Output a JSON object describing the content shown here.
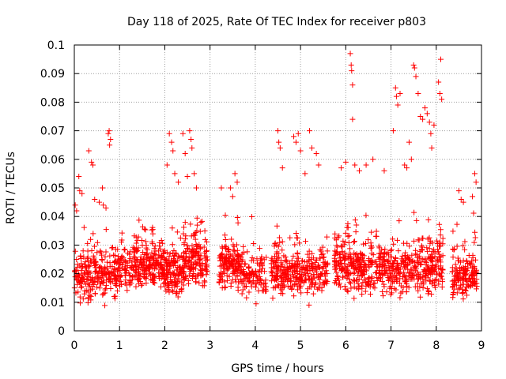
{
  "chart_data": {
    "type": "scatter",
    "title": "Day 118 of 2025, Rate Of TEC Index for receiver p803",
    "xlabel": "GPS time / hours",
    "ylabel": "ROTI / TECUs",
    "xlim": [
      0,
      9
    ],
    "ylim": [
      0,
      0.1
    ],
    "xticks": [
      "0",
      "1",
      "2",
      "3",
      "4",
      "5",
      "6",
      "7",
      "8",
      "9"
    ],
    "yticks": [
      "0",
      "0.01",
      "0.02",
      "0.03",
      "0.04",
      "0.05",
      "0.06",
      "0.07",
      "0.08",
      "0.09",
      "0.1"
    ],
    "grid": true,
    "marker": "plus",
    "series": [
      {
        "color": "#ff0000",
        "clusters": [
          {
            "x": [
              0.0,
              0.35
            ],
            "center": 0.018,
            "spread": 0.012,
            "n": 90
          },
          {
            "x": [
              0.35,
              0.95
            ],
            "center": 0.02,
            "spread": 0.013,
            "n": 150
          },
          {
            "x": [
              0.95,
              1.45
            ],
            "center": 0.022,
            "spread": 0.013,
            "n": 130
          },
          {
            "x": [
              1.45,
              2.0
            ],
            "center": 0.022,
            "spread": 0.013,
            "n": 170
          },
          {
            "x": [
              2.0,
              2.4
            ],
            "center": 0.02,
            "spread": 0.012,
            "n": 120
          },
          {
            "x": [
              2.4,
              2.95
            ],
            "center": 0.024,
            "spread": 0.014,
            "n": 170
          },
          {
            "x": [
              3.2,
              3.65
            ],
            "center": 0.023,
            "spread": 0.013,
            "n": 150
          },
          {
            "x": [
              3.65,
              4.25
            ],
            "center": 0.02,
            "spread": 0.012,
            "n": 120
          },
          {
            "x": [
              4.35,
              4.9
            ],
            "center": 0.02,
            "spread": 0.012,
            "n": 150
          },
          {
            "x": [
              4.9,
              5.6
            ],
            "center": 0.02,
            "spread": 0.012,
            "n": 170
          },
          {
            "x": [
              5.75,
              6.25
            ],
            "center": 0.022,
            "spread": 0.014,
            "n": 150
          },
          {
            "x": [
              6.25,
              6.9
            ],
            "center": 0.022,
            "spread": 0.014,
            "n": 170
          },
          {
            "x": [
              6.9,
              7.5
            ],
            "center": 0.021,
            "spread": 0.014,
            "n": 150
          },
          {
            "x": [
              7.5,
              8.15
            ],
            "center": 0.022,
            "spread": 0.015,
            "n": 180
          },
          {
            "x": [
              8.35,
              8.9
            ],
            "center": 0.019,
            "spread": 0.012,
            "n": 160
          }
        ],
        "outliers": [
          [
            0.02,
            0.044
          ],
          [
            0.05,
            0.042
          ],
          [
            0.1,
            0.054
          ],
          [
            0.12,
            0.049
          ],
          [
            0.17,
            0.048
          ],
          [
            0.32,
            0.063
          ],
          [
            0.38,
            0.059
          ],
          [
            0.41,
            0.058
          ],
          [
            0.45,
            0.046
          ],
          [
            0.55,
            0.045
          ],
          [
            0.62,
            0.05
          ],
          [
            0.64,
            0.044
          ],
          [
            0.75,
            0.069
          ],
          [
            0.77,
            0.07
          ],
          [
            0.8,
            0.067
          ],
          [
            0.78,
            0.065
          ],
          [
            0.7,
            0.043
          ],
          [
            2.05,
            0.058
          ],
          [
            2.1,
            0.069
          ],
          [
            2.15,
            0.066
          ],
          [
            2.18,
            0.063
          ],
          [
            2.22,
            0.055
          ],
          [
            2.3,
            0.052
          ],
          [
            2.4,
            0.069
          ],
          [
            2.45,
            0.062
          ],
          [
            2.55,
            0.07
          ],
          [
            2.58,
            0.067
          ],
          [
            2.6,
            0.064
          ],
          [
            2.65,
            0.055
          ],
          [
            2.7,
            0.05
          ],
          [
            2.5,
            0.054
          ],
          [
            3.25,
            0.05
          ],
          [
            3.45,
            0.05
          ],
          [
            3.55,
            0.055
          ],
          [
            3.6,
            0.052
          ],
          [
            3.5,
            0.047
          ],
          [
            4.5,
            0.07
          ],
          [
            4.52,
            0.066
          ],
          [
            4.55,
            0.064
          ],
          [
            4.6,
            0.057
          ],
          [
            4.85,
            0.068
          ],
          [
            4.9,
            0.066
          ],
          [
            4.95,
            0.069
          ],
          [
            5.0,
            0.063
          ],
          [
            5.2,
            0.07
          ],
          [
            5.25,
            0.064
          ],
          [
            5.35,
            0.062
          ],
          [
            5.4,
            0.058
          ],
          [
            5.1,
            0.055
          ],
          [
            6.1,
            0.097
          ],
          [
            6.12,
            0.093
          ],
          [
            6.13,
            0.091
          ],
          [
            6.15,
            0.086
          ],
          [
            6.15,
            0.074
          ],
          [
            6.2,
            0.058
          ],
          [
            6.3,
            0.056
          ],
          [
            6.45,
            0.058
          ],
          [
            6.6,
            0.06
          ],
          [
            6.85,
            0.056
          ],
          [
            6.0,
            0.059
          ],
          [
            5.9,
            0.057
          ],
          [
            7.05,
            0.07
          ],
          [
            7.1,
            0.085
          ],
          [
            7.12,
            0.082
          ],
          [
            7.15,
            0.079
          ],
          [
            7.2,
            0.083
          ],
          [
            7.3,
            0.058
          ],
          [
            7.35,
            0.057
          ],
          [
            7.5,
            0.093
          ],
          [
            7.52,
            0.092
          ],
          [
            7.55,
            0.089
          ],
          [
            7.6,
            0.083
          ],
          [
            7.65,
            0.075
          ],
          [
            7.7,
            0.074
          ],
          [
            7.8,
            0.076
          ],
          [
            7.85,
            0.073
          ],
          [
            7.88,
            0.069
          ],
          [
            7.9,
            0.064
          ],
          [
            7.75,
            0.078
          ],
          [
            7.95,
            0.072
          ],
          [
            8.05,
            0.087
          ],
          [
            8.08,
            0.083
          ],
          [
            8.1,
            0.095
          ],
          [
            8.12,
            0.081
          ],
          [
            7.45,
            0.06
          ],
          [
            7.4,
            0.066
          ],
          [
            8.5,
            0.049
          ],
          [
            8.55,
            0.046
          ],
          [
            8.6,
            0.045
          ],
          [
            8.85,
            0.055
          ],
          [
            8.88,
            0.052
          ],
          [
            8.8,
            0.047
          ]
        ]
      }
    ]
  }
}
